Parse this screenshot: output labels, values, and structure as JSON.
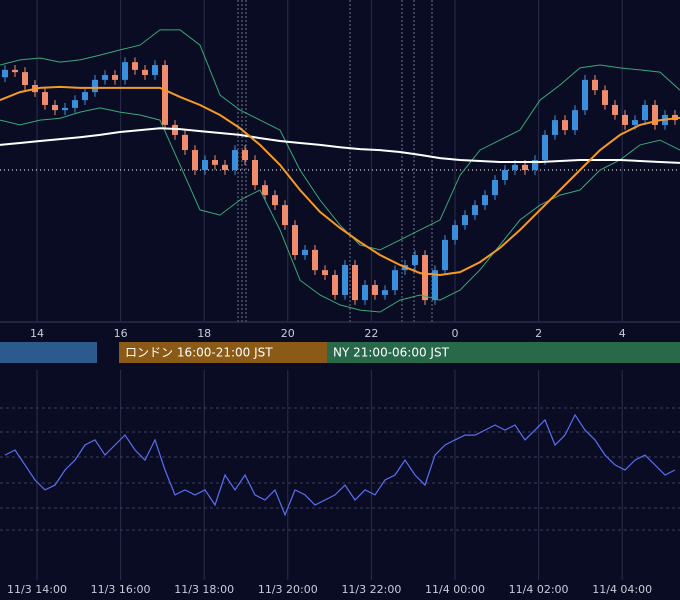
{
  "chart_data": {
    "type": "candlestick",
    "ylim": [
      0,
      100
    ],
    "up_color": "#3a8fdc",
    "down_color": "#f08c6c",
    "opens": [
      76.0,
      78.3,
      77.6,
      73.6,
      71.4,
      67.4,
      65.8,
      66.5,
      68.9,
      71.4,
      75.2,
      76.7,
      75.2,
      80.7,
      78.3,
      76.7,
      79.8,
      61.2,
      58.1,
      53.4,
      47.2,
      50.3,
      48.8,
      47.2,
      53.4,
      50.3,
      42.5,
      39.4,
      36.3,
      30.1,
      20.8,
      22.4,
      16.1,
      14.6,
      8.4,
      17.7,
      6.8,
      11.5,
      8.4,
      9.9,
      16.1,
      17.7,
      20.8,
      6.8,
      16.1,
      25.5,
      30.1,
      33.2,
      36.3,
      39.4,
      44.1,
      47.2,
      48.8,
      47.2,
      50.3,
      58.1,
      62.7,
      59.6,
      65.8,
      75.2,
      72.0,
      67.4,
      64.3,
      61.2,
      62.7,
      67.4,
      61.2,
      64.3
    ],
    "highs": [
      79.8,
      79.8,
      79.1,
      75.1,
      72.9,
      68.9,
      68.0,
      70.4,
      72.9,
      76.7,
      78.2,
      78.2,
      82.2,
      82.2,
      79.8,
      81.3,
      81.3,
      62.7,
      59.6,
      54.9,
      51.8,
      51.8,
      50.3,
      54.9,
      54.9,
      51.8,
      44.0,
      40.9,
      37.8,
      31.6,
      23.9,
      23.9,
      17.6,
      16.1,
      19.2,
      19.2,
      13.0,
      13.0,
      11.4,
      17.6,
      19.2,
      22.3,
      22.3,
      17.6,
      27.0,
      31.6,
      34.7,
      37.8,
      40.9,
      45.6,
      48.7,
      50.3,
      50.3,
      51.8,
      59.6,
      64.2,
      64.2,
      67.3,
      76.7,
      76.7,
      73.5,
      68.9,
      65.8,
      64.2,
      68.9,
      68.9,
      65.8,
      65.8
    ],
    "lows": [
      74.5,
      76.1,
      72.1,
      69.9,
      65.9,
      64.3,
      64.3,
      65.0,
      67.4,
      69.9,
      73.7,
      73.7,
      73.7,
      76.8,
      75.2,
      75.2,
      59.7,
      56.6,
      51.9,
      45.7,
      45.7,
      47.3,
      45.7,
      45.7,
      48.8,
      41.0,
      37.9,
      34.8,
      28.6,
      19.3,
      19.3,
      14.6,
      13.1,
      6.9,
      6.9,
      5.3,
      5.3,
      6.9,
      6.9,
      8.4,
      14.6,
      16.2,
      5.3,
      5.3,
      14.6,
      24.0,
      28.6,
      31.7,
      34.8,
      37.9,
      42.6,
      45.7,
      45.7,
      45.7,
      48.8,
      56.6,
      58.1,
      58.1,
      64.3,
      70.5,
      65.9,
      62.8,
      59.7,
      59.7,
      61.2,
      59.7,
      59.7,
      61.2
    ],
    "closes": [
      78.3,
      77.6,
      73.6,
      71.4,
      67.4,
      65.8,
      66.5,
      68.9,
      71.4,
      75.2,
      76.7,
      75.2,
      80.7,
      78.3,
      76.7,
      79.8,
      61.2,
      58.1,
      53.4,
      47.2,
      50.3,
      48.8,
      47.2,
      53.4,
      50.3,
      42.5,
      39.4,
      36.3,
      30.1,
      20.8,
      22.4,
      16.1,
      14.6,
      8.4,
      17.7,
      6.8,
      11.5,
      8.4,
      9.9,
      16.1,
      17.7,
      20.8,
      6.8,
      16.1,
      25.5,
      30.1,
      33.2,
      36.3,
      39.4,
      44.1,
      47.2,
      48.8,
      47.2,
      50.3,
      58.1,
      62.7,
      59.6,
      65.8,
      75.2,
      72.0,
      67.4,
      64.3,
      61.2,
      62.7,
      67.4,
      61.2,
      64.3,
      62.7
    ],
    "overlays": [
      {
        "color": "#3aa878",
        "values": [
          79.8,
          81.4,
          82.0,
          80.7,
          81.4,
          82.9,
          84.5,
          86.0,
          90.7,
          90.7,
          86.0,
          70.5,
          65.8,
          62.7,
          59.6,
          47.2,
          37.9,
          30.1,
          23.9,
          22.4,
          25.5,
          28.6,
          31.7,
          45.6,
          53.4,
          56.5,
          59.6,
          68.9,
          73.6,
          78.9,
          79.8,
          78.9,
          78.3,
          77.6,
          72.0
        ]
      },
      {
        "color": "#3aa878",
        "values": [
          62.7,
          61.2,
          62.7,
          63.3,
          65.2,
          66.5,
          65.2,
          64.3,
          62.7,
          48.8,
          34.8,
          33.2,
          37.9,
          41.0,
          28.6,
          13.0,
          8.4,
          5.3,
          3.7,
          3.1,
          6.8,
          8.4,
          6.8,
          9.9,
          16.2,
          23.9,
          31.7,
          36.3,
          39.4,
          41.0,
          47.2,
          50.3,
          55.0,
          56.5,
          53.4
        ]
      },
      {
        "color": "#ffffff",
        "values": [
          55.0,
          55.6,
          56.2,
          56.8,
          57.4,
          58.1,
          59.0,
          59.6,
          60.2,
          59.9,
          59.3,
          58.7,
          58.1,
          57.1,
          56.2,
          55.6,
          55.0,
          54.3,
          53.7,
          53.4,
          52.8,
          51.9,
          50.9,
          50.3,
          50.0,
          49.7,
          49.7,
          49.7,
          50.0,
          50.3,
          50.3,
          50.3,
          50.0,
          49.7,
          49.4
        ]
      },
      {
        "color": "#f59a23",
        "values": [
          68.9,
          71.4,
          72.7,
          73.0,
          72.7,
          72.7,
          72.7,
          72.7,
          72.7,
          69.9,
          67.4,
          64.3,
          60.2,
          55.0,
          48.8,
          41.0,
          34.2,
          29.2,
          24.8,
          20.8,
          17.7,
          15.2,
          14.6,
          15.5,
          18.6,
          23.0,
          28.6,
          34.8,
          41.0,
          47.2,
          53.4,
          58.1,
          61.2,
          62.7,
          63.4
        ]
      }
    ],
    "reference_line": 47.2,
    "x_labels": [
      "14",
      "16",
      "18",
      "20",
      "22",
      "0",
      "2",
      "4"
    ],
    "sessions": [
      {
        "label": "ロンドン 16:00-21:00 JST",
        "color": "#8a5a16"
      },
      {
        "label": "NY 21:00-06:00 JST",
        "color": "#28694a"
      }
    ],
    "oscillator": {
      "color": "#5b6ef2",
      "ylim": [
        0,
        100
      ],
      "levels": [
        81.9,
        70.5,
        58.6,
        46.2,
        34.3,
        23.8
      ],
      "values": [
        59.5,
        61.9,
        54.8,
        47.6,
        42.9,
        45.2,
        52.4,
        57.1,
        64.3,
        66.7,
        59.5,
        64.3,
        69.0,
        61.9,
        57.1,
        66.7,
        52.4,
        40.5,
        42.9,
        40.5,
        42.9,
        35.7,
        50.0,
        42.9,
        50.0,
        40.5,
        38.1,
        42.9,
        31.0,
        42.9,
        40.5,
        35.7,
        38.1,
        40.5,
        45.2,
        38.1,
        42.9,
        40.5,
        47.6,
        50.0,
        57.1,
        50.0,
        45.2,
        59.5,
        64.3,
        66.7,
        69.0,
        69.0,
        71.4,
        73.8,
        71.4,
        73.8,
        66.7,
        71.4,
        76.2,
        64.3,
        69.0,
        78.6,
        71.4,
        66.7,
        59.5,
        54.8,
        52.4,
        57.1,
        59.5,
        54.8,
        50.0,
        52.4
      ]
    },
    "x_labels_bottom": [
      "11/3 14:00",
      "11/3 16:00",
      "11/3 18:00",
      "11/3 20:00",
      "11/3 22:00",
      "11/4 00:00",
      "11/4 02:00",
      "11/4 04:00"
    ]
  }
}
